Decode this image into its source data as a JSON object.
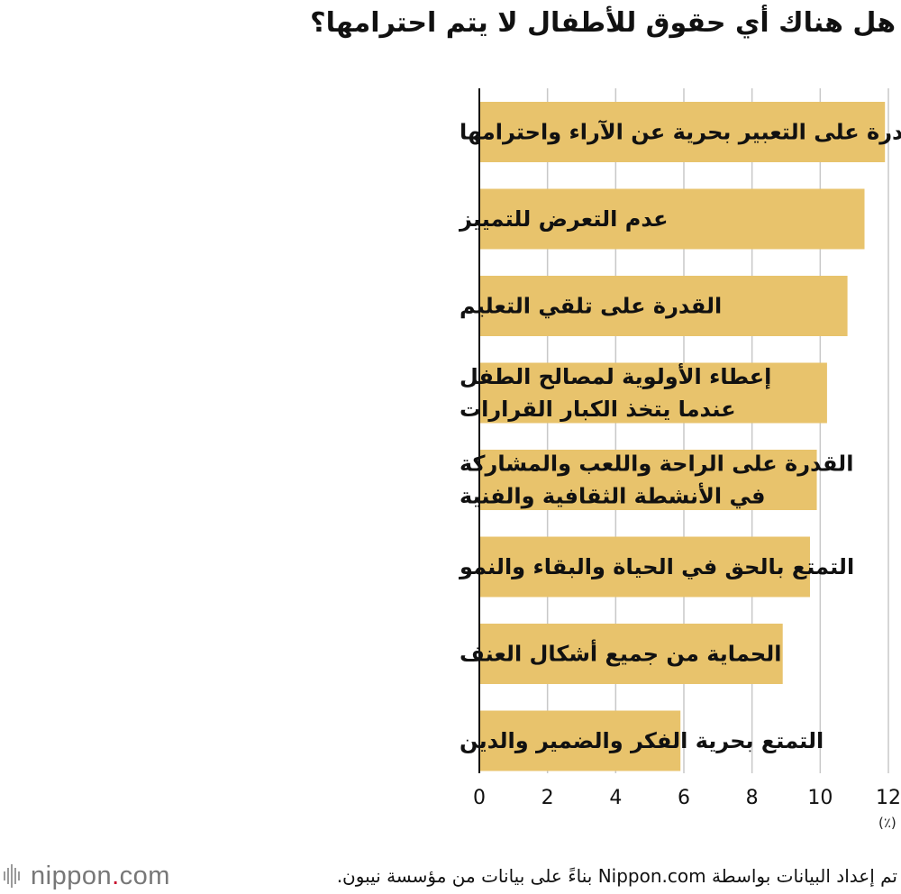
{
  "chart_data": {
    "type": "bar",
    "orientation": "horizontal",
    "title": "هل هناك أي حقوق للأطفال لا يتم احترامها؟",
    "categories": [
      [
        "القدرة على التعبير بحرية عن الآراء واحترامها"
      ],
      [
        "عدم التعرض للتمييز"
      ],
      [
        "القدرة على تلقي التعليم"
      ],
      [
        "إعطاء الأولوية لمصالح الطفل",
        "عندما يتخذ الكبار القرارات"
      ],
      [
        "القدرة على الراحة واللعب والمشاركة",
        "في الأنشطة الثقافية والفنية"
      ],
      [
        "التمتع بالحق في الحياة والبقاء والنمو"
      ],
      [
        "الحماية من جميع أشكال العنف"
      ],
      [
        "التمتع بحرية الفكر والضمير والدين"
      ]
    ],
    "values": [
      11.9,
      11.3,
      10.8,
      10.2,
      9.9,
      9.7,
      8.9,
      5.9
    ],
    "xlim": [
      0,
      12
    ],
    "xticks": [
      0,
      2,
      4,
      6,
      8,
      10,
      12
    ],
    "unit": "(٪)",
    "grid": true,
    "bar_color": "#E8C36C",
    "grid_color": "#C8C8C8"
  },
  "footer": {
    "logo_text": "nippon",
    "logo_dot": ".",
    "logo_suffix": "com",
    "logo_accent": "#C8102E",
    "source": "تم إعداد البيانات بواسطة Nippon.com بناءً على بيانات من مؤسسة نيبون."
  }
}
